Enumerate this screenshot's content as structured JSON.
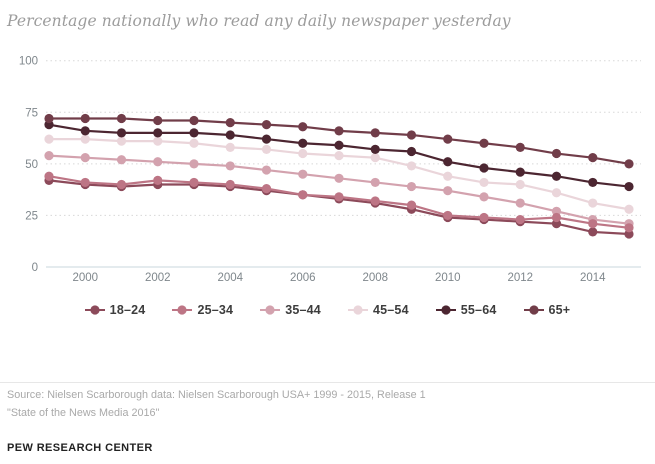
{
  "title": "Percentage nationally who read any daily newspaper yesterday",
  "footer": {
    "source_line1": "Source: Nielsen Scarborough data: Nielsen Scarborough USA+ 1999 - 2015, Release 1",
    "source_line2": "\"State of the News Media 2016\"",
    "branding": "PEW RESEARCH CENTER"
  },
  "colors": {
    "grid_dotted": "#d8d8d8",
    "axis_zero_line": "#c9d7de",
    "axis_tick_text": "#7f878c"
  },
  "chart_data": {
    "type": "line",
    "title": "Percentage nationally who read any daily newspaper yesterday",
    "x": [
      1999,
      2000,
      2001,
      2002,
      2003,
      2004,
      2005,
      2006,
      2007,
      2008,
      2009,
      2010,
      2011,
      2012,
      2013,
      2014,
      2015
    ],
    "x_tick_labels": [
      "2000",
      "2002",
      "2004",
      "2006",
      "2008",
      "2010",
      "2012",
      "2014"
    ],
    "x_tick_years": [
      2000,
      2002,
      2004,
      2006,
      2008,
      2010,
      2012,
      2014
    ],
    "y_ticks": [
      0,
      25,
      50,
      75,
      100
    ],
    "ylim": [
      0,
      100
    ],
    "grid": "horizontal dotted",
    "legend_position": "bottom",
    "marker": "circle",
    "series": [
      {
        "name": "18–24",
        "color": "#8c4a5a",
        "values": [
          42,
          40,
          39,
          40,
          40,
          39,
          37,
          35,
          33,
          31,
          28,
          24,
          23,
          22,
          21,
          17,
          16
        ]
      },
      {
        "name": "25–34",
        "color": "#bd7585",
        "values": [
          44,
          41,
          40,
          42,
          41,
          40,
          38,
          35,
          34,
          32,
          30,
          25,
          24,
          23,
          24,
          21,
          19
        ]
      },
      {
        "name": "35–44",
        "color": "#d3a2ae",
        "values": [
          54,
          53,
          52,
          51,
          50,
          49,
          47,
          45,
          43,
          41,
          39,
          37,
          34,
          31,
          27,
          23,
          21
        ]
      },
      {
        "name": "45–54",
        "color": "#ead5da",
        "values": [
          62,
          62,
          61,
          61,
          60,
          58,
          57,
          55,
          54,
          53,
          49,
          44,
          41,
          40,
          36,
          31,
          28
        ]
      },
      {
        "name": "55–64",
        "color": "#4c2631",
        "values": [
          69,
          66,
          65,
          65,
          65,
          64,
          62,
          60,
          59,
          57,
          56,
          51,
          48,
          46,
          44,
          41,
          39
        ]
      },
      {
        "name": "65+",
        "color": "#713d49",
        "values": [
          72,
          72,
          72,
          71,
          71,
          70,
          69,
          68,
          66,
          65,
          64,
          62,
          60,
          58,
          55,
          53,
          50
        ]
      }
    ],
    "draw_order": [
      3,
      2,
      0,
      1,
      4,
      5
    ]
  }
}
